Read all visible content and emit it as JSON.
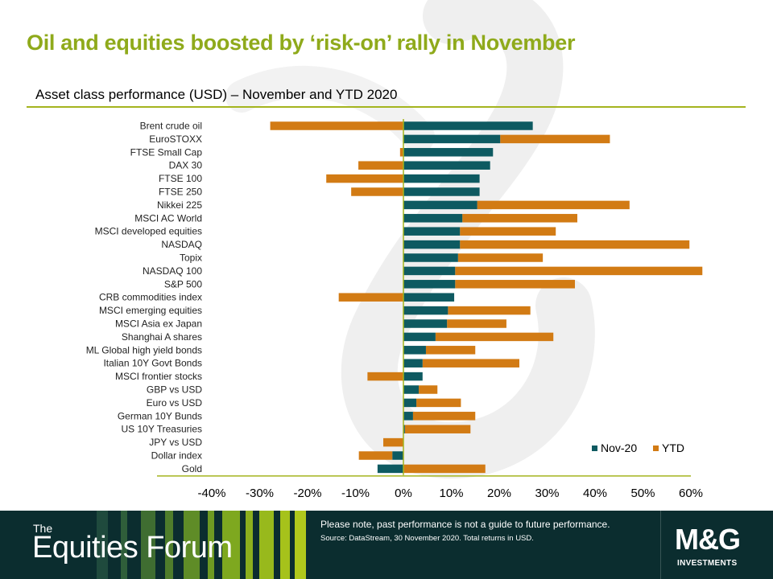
{
  "header": {
    "title": "Oil and equities boosted by ‘risk-on’ rally in November",
    "subtitle": "Asset class performance (USD) – November and YTD 2020"
  },
  "footer": {
    "brand_the": "The",
    "brand_name": "Equities Forum",
    "note": "Please note, past performance is not a guide to future performance.",
    "source": "Source: DataStream, 30 November 2020. Total returns in USD.",
    "logo_mark": "M&G",
    "logo_sub": "INVESTMENTS"
  },
  "colors": {
    "nov": "#0e5a61",
    "ytd": "#d27b14",
    "title": "#8faa1b",
    "footer_bg": "#0b2d2f"
  },
  "chart_data": {
    "type": "bar",
    "orientation": "horizontal",
    "categories": [
      "Brent crude oil",
      "EuroSTOXX",
      "FTSE Small Cap",
      "DAX 30",
      "FTSE 100",
      "FTSE 250",
      "Nikkei 225",
      "MSCI AC World",
      "MSCI developed equities",
      "NASDAQ",
      "Topix",
      "NASDAQ 100",
      "S&P 500",
      "CRB commodities index",
      "MSCI emerging equities",
      "MSCI Asia ex Japan",
      "Shanghai A shares",
      "ML Global high yield bonds",
      "Italian 10Y Govt Bonds",
      "MSCI frontier stocks",
      "GBP vs USD",
      "Euro vs USD",
      "German 10Y Bunds",
      "US 10Y Treasuries",
      "JPY vs USD",
      "Dollar index",
      "Gold"
    ],
    "series": [
      {
        "name": "Nov-20",
        "values": [
          27.0,
          20.2,
          18.7,
          18.1,
          15.9,
          15.9,
          15.4,
          12.3,
          11.8,
          11.8,
          11.4,
          10.8,
          10.8,
          10.6,
          9.3,
          9.1,
          6.7,
          4.7,
          4.0,
          4.0,
          3.2,
          2.7,
          2.0,
          0.3,
          0.0,
          -2.3,
          -5.4
        ]
      },
      {
        "name": "YTD",
        "values": [
          -27.8,
          22.9,
          -0.7,
          -9.4,
          -16.1,
          -10.9,
          31.8,
          24.0,
          20.0,
          47.9,
          17.7,
          51.6,
          25.0,
          -13.5,
          17.2,
          12.4,
          24.6,
          10.3,
          20.2,
          -7.5,
          3.9,
          9.3,
          13.0,
          13.7,
          -4.2,
          -7.0,
          17.1
        ]
      }
    ],
    "xlim": [
      -40,
      60
    ],
    "xticks": [
      "-40%",
      "-30%",
      "-20%",
      "-10%",
      "0%",
      "10%",
      "20%",
      "30%",
      "40%",
      "50%",
      "60%"
    ],
    "legend_position": "bottom-right",
    "grid": false
  }
}
